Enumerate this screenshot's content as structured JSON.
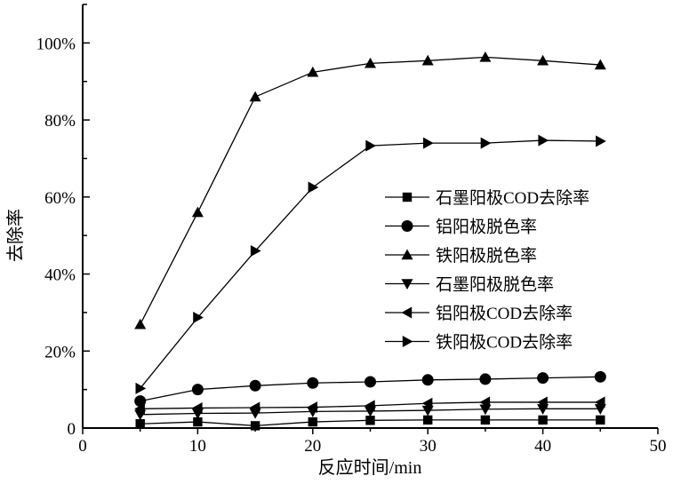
{
  "chart_data": {
    "type": "line",
    "xlabel": "反应时间/min",
    "ylabel": "去除率",
    "xlim": [
      0,
      50
    ],
    "ylim": [
      0,
      110
    ],
    "xticks": [
      "0",
      "10",
      "20",
      "30",
      "40",
      "50"
    ],
    "yticks": [
      "0",
      "20%",
      "40%",
      "60%",
      "80%",
      "100%"
    ],
    "grid": false,
    "legend_position": "center-right",
    "x": [
      5,
      10,
      15,
      20,
      25,
      30,
      35,
      40,
      45
    ],
    "series": [
      {
        "name": "石墨阳极COD去除率",
        "marker": "square",
        "values": [
          1.1,
          1.6,
          0.6,
          1.6,
          2.0,
          2.1,
          2.1,
          2.1,
          2.1
        ]
      },
      {
        "name": "铝阳极脱色率",
        "marker": "circle",
        "values": [
          7.0,
          10.0,
          11.0,
          11.7,
          12.0,
          12.5,
          12.7,
          13.0,
          13.3
        ]
      },
      {
        "name": "铁阳极脱色率",
        "marker": "triangle-up",
        "values": [
          26.9,
          56.0,
          86.0,
          92.4,
          94.7,
          95.4,
          96.3,
          95.4,
          94.3
        ]
      },
      {
        "name": "石墨阳极脱色率",
        "marker": "triangle-down",
        "values": [
          3.5,
          3.8,
          3.9,
          4.3,
          4.4,
          4.6,
          4.9,
          5.0,
          5.0
        ]
      },
      {
        "name": "铝阳极COD去除率",
        "marker": "triangle-left",
        "values": [
          5.0,
          5.2,
          5.3,
          5.4,
          5.8,
          6.4,
          6.7,
          6.7,
          6.7
        ]
      },
      {
        "name": "铁阳极COD去除率",
        "marker": "triangle-right",
        "values": [
          10.3,
          28.7,
          46.0,
          62.5,
          73.3,
          74.0,
          74.0,
          74.7,
          74.5
        ]
      }
    ]
  }
}
